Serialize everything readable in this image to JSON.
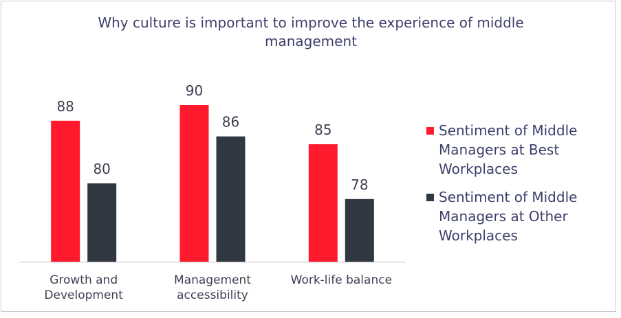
{
  "chart_data": {
    "type": "bar",
    "title": "Why culture is important to improve the experience of middle management",
    "categories": [
      "Growth and Development",
      "Management accessibility",
      "Work-life balance"
    ],
    "series": [
      {
        "name": "Sentiment of Middle Managers at Best Workplaces",
        "color": "#ff1a2e",
        "values": [
          88,
          90,
          85
        ]
      },
      {
        "name": "Sentiment of Middle Managers at Other Workplaces",
        "color": "#323841",
        "values": [
          80,
          86,
          78
        ]
      }
    ],
    "ylim": [
      70,
      100
    ],
    "legend": "right"
  }
}
